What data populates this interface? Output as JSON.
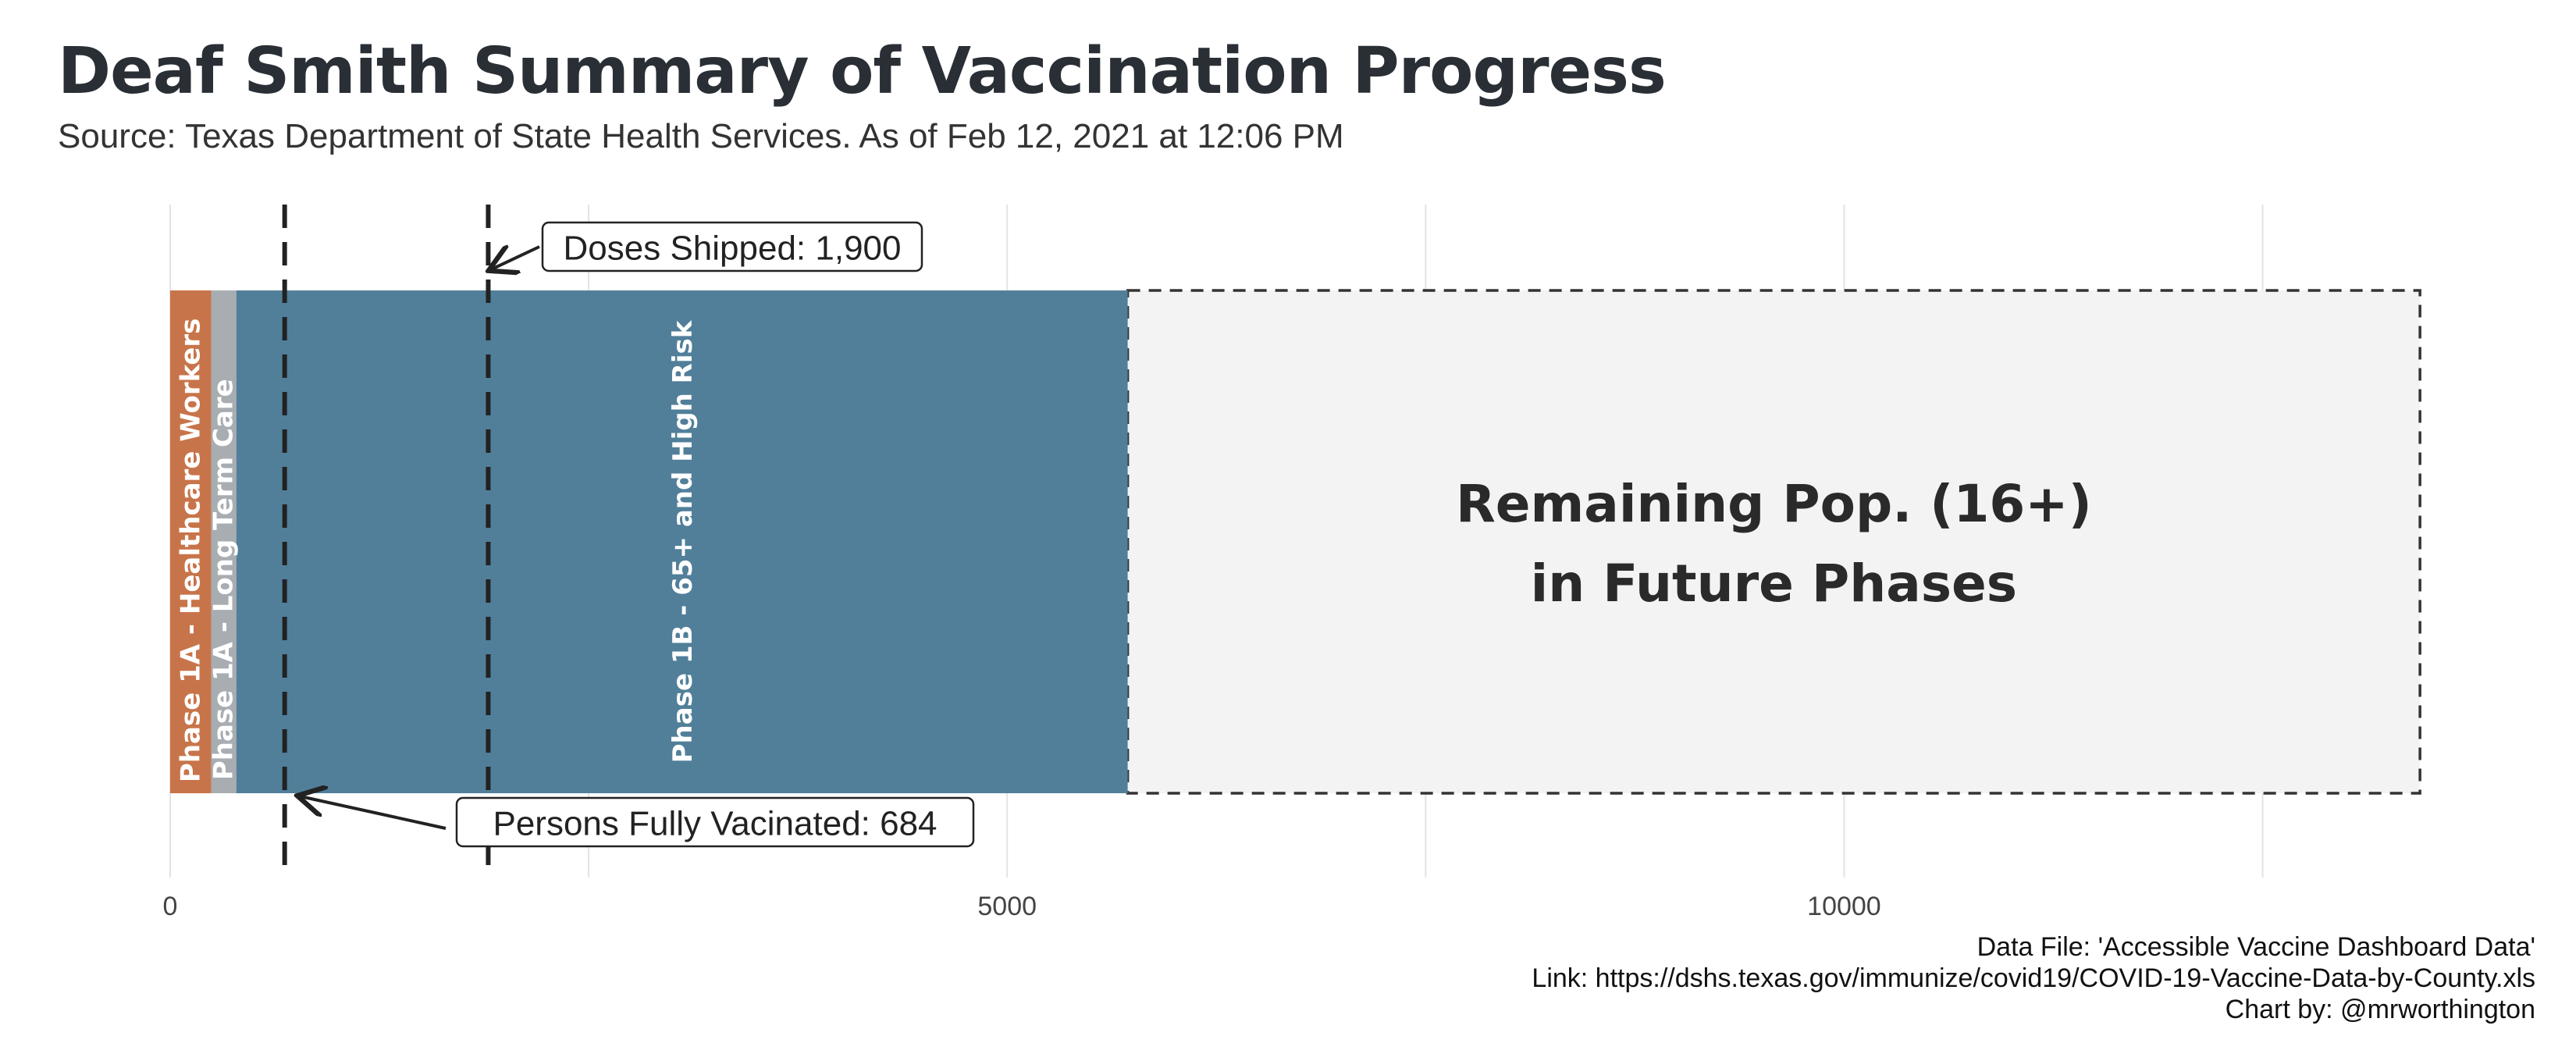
{
  "chart_data": {
    "type": "bar",
    "orientation": "horizontal",
    "stacked": true,
    "title": "Deaf Smith Summary of Vaccination Progress",
    "subtitle": "Source: Texas Department of State Health Services. As of Feb 12, 2021 at 12:06 PM",
    "xlim": [
      0,
      13500
    ],
    "x_ticks": [
      0,
      5000,
      10000
    ],
    "x_tick_labels": [
      "0",
      "5000",
      "10000"
    ],
    "x_gridlines": [
      0,
      2500,
      5000,
      7500,
      10000,
      12500
    ],
    "grid": true,
    "segments": [
      {
        "label": "Phase 1A - Healthcare Workers",
        "start": 0,
        "value": 245,
        "color": "#c8744a",
        "text_color": "#ffffff"
      },
      {
        "label": "Phase 1A - Long Term Care",
        "start": 245,
        "value": 150,
        "color": "#a8adb2",
        "text_color": "#ffffff"
      },
      {
        "label": "Phase 1B - 65+ and High Risk",
        "start": 395,
        "value": 5325,
        "color": "#517f9a",
        "text_color": "#ffffff"
      }
    ],
    "remaining": {
      "label_line1": "Remaining Pop. (16+)",
      "label_line2": "in Future Phases",
      "start": 5720,
      "end": 13440,
      "color": "#f3f3f3",
      "border_color": "#333333"
    },
    "reference_lines": [
      {
        "label": "Doses Shipped: 1,900",
        "value": 1900,
        "annotation_position": "top"
      },
      {
        "label": "Persons Fully Vacinated: 684",
        "value": 684,
        "annotation_position": "bottom"
      }
    ]
  },
  "footer": {
    "data_file": "Data File: 'Accessible Vaccine Dashboard Data'",
    "link": "Link: https://dshs.texas.gov/immunize/covid19/COVID-19-Vaccine-Data-by-County.xls",
    "credit": "Chart by: @mrworthington"
  }
}
